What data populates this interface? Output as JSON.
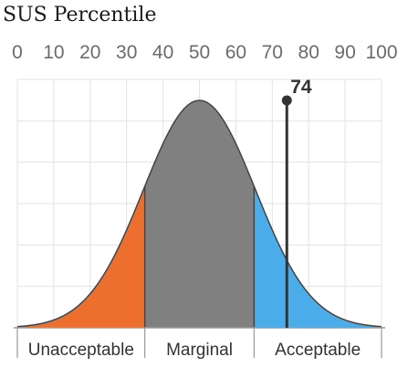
{
  "chart_data": {
    "type": "area",
    "title": "SUS Percentile",
    "x_ticks": [
      "0",
      "10",
      "20",
      "30",
      "40",
      "50",
      "60",
      "70",
      "80",
      "90",
      "100"
    ],
    "xlim": [
      0,
      100
    ],
    "grid": true,
    "distribution": {
      "mean": 50,
      "sd": 15.4
    },
    "zones": [
      {
        "label": "Unacceptable",
        "from": 0,
        "to": 35,
        "color": "#ee6f2d"
      },
      {
        "label": "Marginal",
        "from": 35,
        "to": 65,
        "color": "#808080"
      },
      {
        "label": "Acceptable",
        "from": 65,
        "to": 100,
        "color": "#4bacea"
      }
    ],
    "marker": {
      "value": 74,
      "label": "74"
    }
  }
}
